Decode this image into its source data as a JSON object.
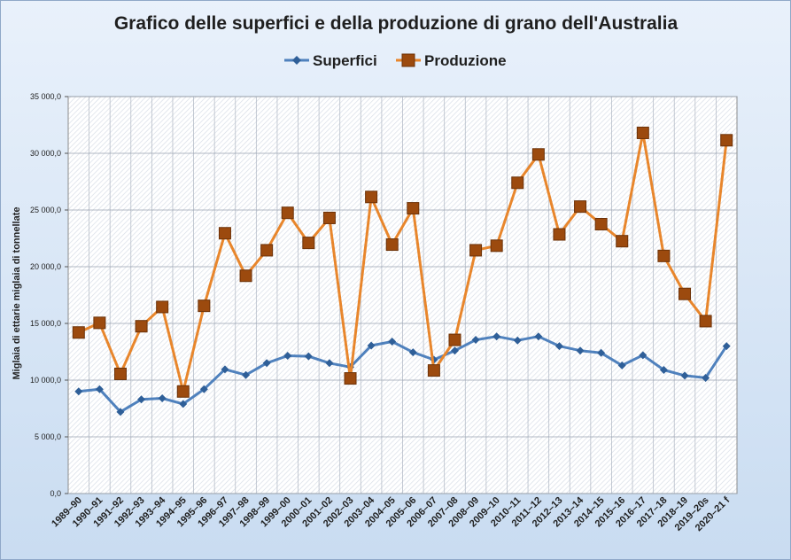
{
  "chart_data": {
    "type": "line",
    "title": "Grafico delle superfici e della produzione di grano dell'Australia",
    "ylabel": "Miglaia  di ettarie miglaia di tonnellate",
    "xlabel": "",
    "ylim": [
      0,
      35000
    ],
    "yticks": [
      0,
      5000,
      10000,
      15000,
      20000,
      25000,
      30000,
      35000
    ],
    "ytick_labels": [
      "0,0",
      "5 000,0",
      "10 000,0",
      "15 000,0",
      "20 000,0",
      "25 000,0",
      "30 000,0",
      "35 000,0"
    ],
    "grid": true,
    "legend_position": "top",
    "categories": [
      "1989–90",
      "1990–91",
      "1991–92",
      "1992–93",
      "1993–94",
      "1994–95",
      "1995–96",
      "1996–97",
      "1997–98",
      "1998–99",
      "1999–00",
      "2000–01",
      "2001–02",
      "2002–03",
      "2003–04",
      "2004–05",
      "2005–06",
      "2006–07",
      "2007–08",
      "2008–09",
      "2009–10",
      "2010–11",
      "2011–12",
      "2012–13",
      "2013–14",
      "2014–15",
      "2015–16",
      "2016–17",
      "2017–18",
      "2018–19",
      "2019–20s",
      "2020–21 f"
    ],
    "series": [
      {
        "name": "Superfici",
        "color": "#4f81bd",
        "marker": "diamond",
        "values": [
          9000,
          9200,
          7200,
          8300,
          8400,
          7900,
          9200,
          10950,
          10450,
          11500,
          12150,
          12100,
          11500,
          11150,
          13050,
          13400,
          12450,
          11800,
          12600,
          13550,
          13850,
          13500,
          13850,
          13000,
          12600,
          12400,
          11300,
          12200,
          10900,
          10400,
          10200,
          13000
        ]
      },
      {
        "name": "Produzione",
        "color": "#e8862c",
        "marker_color": "#9c4a0e",
        "marker": "square",
        "values": [
          14200,
          15050,
          10550,
          14750,
          16450,
          9000,
          16550,
          22950,
          19200,
          21450,
          24750,
          22100,
          24300,
          10150,
          26150,
          21950,
          25150,
          10850,
          13550,
          21450,
          21850,
          27400,
          29900,
          22850,
          25300,
          23750,
          22250,
          31800,
          20950,
          17600,
          15200,
          31150
        ]
      }
    ]
  }
}
